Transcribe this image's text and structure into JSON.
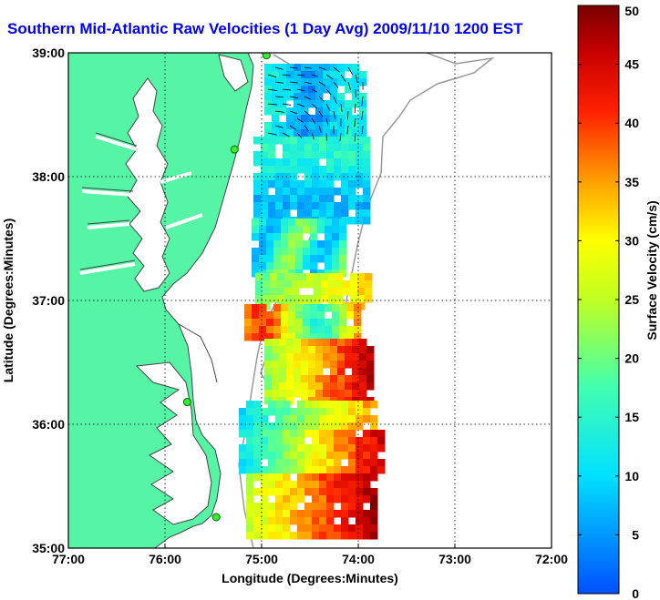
{
  "title": "Southern Mid-Atlantic Raw Velocities (1 Day Avg) 2009/11/10 1200 EST",
  "colors": {
    "land": "#55f5a5",
    "coast": "#444444",
    "isobath": "#999999",
    "arrows": "#000000",
    "station": "#33ee33"
  },
  "chart_data": {
    "type": "heatmap",
    "title": "Southern Mid-Atlantic Raw Velocities (1 Day Avg) 2009/11/10 1200 EST",
    "xlabel": "Longitude (Degrees:Minutes)",
    "ylabel": "Latitude (Degrees:Minutes)",
    "x_ticks": [
      "77:00",
      "76:00",
      "75:00",
      "74:00",
      "73:00",
      "72:00"
    ],
    "y_ticks": [
      "39:00",
      "38:00",
      "37:00",
      "36:00",
      "35:00"
    ],
    "xlim": [
      -77,
      -72
    ],
    "ylim": [
      35,
      39
    ],
    "grid": true,
    "colorbar": {
      "label": "Surface Velocity (cm/s)",
      "ticks": [
        "50",
        "45",
        "40",
        "35",
        "30",
        "25",
        "20",
        "15",
        "10",
        "5",
        "0"
      ],
      "range": [
        0,
        50
      ],
      "colormap": "jet"
    },
    "stations": [
      {
        "lon": -74.95,
        "lat": 38.98
      },
      {
        "lon": -75.28,
        "lat": 38.22
      },
      {
        "lon": -75.77,
        "lat": 36.18
      },
      {
        "lon": -75.47,
        "lat": 35.25
      }
    ]
  }
}
